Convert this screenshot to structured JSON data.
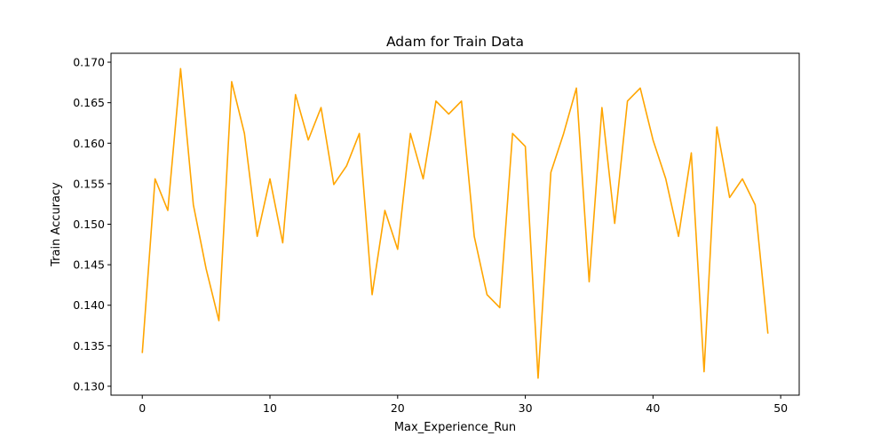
{
  "chart_data": {
    "type": "line",
    "title": "Adam for Train Data",
    "xlabel": "Max_Experience_Run",
    "ylabel": "Train Accuracy",
    "xlim": [
      -2.45,
      51.45
    ],
    "ylim": [
      0.1289,
      0.1711
    ],
    "xticks": [
      0,
      10,
      20,
      30,
      40,
      50
    ],
    "yticks": [
      0.13,
      0.135,
      0.14,
      0.145,
      0.15,
      0.155,
      0.16,
      0.165,
      0.17
    ],
    "ytick_labels": [
      "0.130",
      "0.135",
      "0.140",
      "0.145",
      "0.150",
      "0.155",
      "0.160",
      "0.165",
      "0.170"
    ],
    "grid": false,
    "series": [
      {
        "color": "#ffa500",
        "x": [
          0,
          1,
          2,
          3,
          4,
          5,
          6,
          7,
          8,
          9,
          10,
          11,
          12,
          13,
          14,
          15,
          16,
          17,
          18,
          19,
          20,
          21,
          22,
          23,
          24,
          25,
          26,
          27,
          28,
          29,
          30,
          31,
          32,
          33,
          34,
          35,
          36,
          37,
          38,
          39,
          40,
          41,
          42,
          43,
          44,
          45,
          46,
          47,
          48,
          49
        ],
        "y": [
          0.1341,
          0.1556,
          0.1517,
          0.1692,
          0.1524,
          0.1445,
          0.1381,
          0.1676,
          0.1612,
          0.1485,
          0.1556,
          0.1477,
          0.166,
          0.1604,
          0.1644,
          0.1549,
          0.1572,
          0.1612,
          0.1413,
          0.1517,
          0.1469,
          0.1612,
          0.1556,
          0.1652,
          0.1636,
          0.1652,
          0.1485,
          0.1413,
          0.1397,
          0.1612,
          0.1596,
          0.131,
          0.1564,
          0.1612,
          0.1668,
          0.1429,
          0.1644,
          0.1501,
          0.1652,
          0.1668,
          0.1604,
          0.1556,
          0.1485,
          0.1588,
          0.1318,
          0.162,
          0.1533,
          0.1556,
          0.1524,
          0.1365
        ]
      }
    ]
  }
}
